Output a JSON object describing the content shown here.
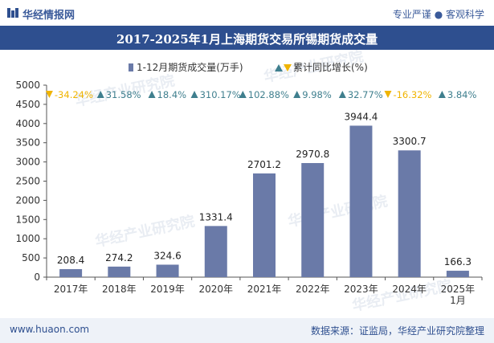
{
  "header": {
    "brand": "华经情报网",
    "tagline": "专业严谨 ● 客观科学"
  },
  "footer": {
    "site": "www.huaon.com",
    "source": "数据来源：证监局，华经产业研究院整理"
  },
  "watermark": "华经产业研究院",
  "colors": {
    "bar": "#6a7aa8",
    "up": "#3f7f8e",
    "down": "#f0b400",
    "title_band": "#2e4f8f"
  },
  "chart_data": {
    "type": "bar",
    "title": "2017-2025年1月上海期货交易所锡期货成交量",
    "categories": [
      "2017年",
      "2018年",
      "2019年",
      "2020年",
      "2021年",
      "2022年",
      "2023年",
      "2024年",
      "2025年\n1月"
    ],
    "series": [
      {
        "name": "1-12月期货成交量(万手)",
        "values": [
          208.4,
          274.2,
          324.6,
          1331.4,
          2701.2,
          2970.8,
          3944.4,
          3300.7,
          166.3
        ],
        "labels": [
          "208.4",
          "274.2",
          "324.6",
          "1331.4",
          "2701.2",
          "2970.8",
          "3944.4",
          "3300.7",
          "166.3"
        ]
      },
      {
        "name": "累计同比增长(%)",
        "values": [
          -34.24,
          31.58,
          18.4,
          310.17,
          102.88,
          9.98,
          32.77,
          -16.32,
          3.84
        ],
        "labels": [
          "-34.24%",
          "31.58%",
          "18.4%",
          "310.17%",
          "102.88%",
          "9.98%",
          "32.77%",
          "-16.32%",
          "3.84%"
        ]
      }
    ],
    "ylim": [
      0,
      5000
    ],
    "yticks": [
      "0",
      "500",
      "1000",
      "1500",
      "2000",
      "2500",
      "3000",
      "3500",
      "4000",
      "4500",
      "5000"
    ],
    "xlabel": "",
    "ylabel": "",
    "grid": false,
    "legend": "top-center"
  }
}
